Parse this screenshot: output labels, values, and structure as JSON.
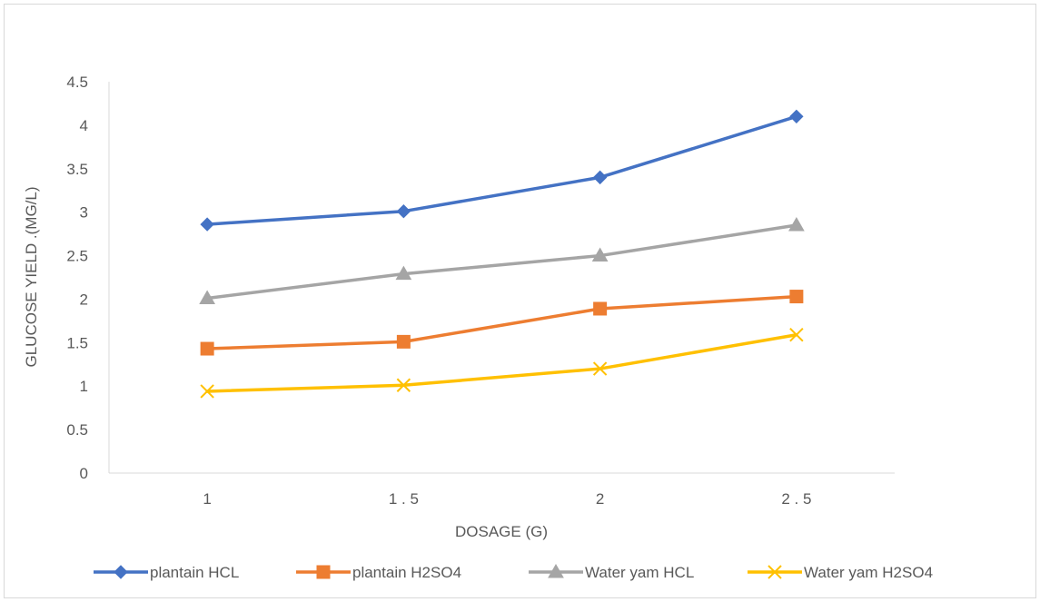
{
  "chart_data": {
    "type": "line",
    "title": "",
    "xlabel": "DOSAGE (G)",
    "ylabel": "GLUCOSE YIELD .(MG/L)",
    "categories": [
      "1",
      "1.5",
      "2",
      "2.5"
    ],
    "category_labels": [
      "1",
      "1 . 5",
      "2",
      "2 . 5"
    ],
    "ylim": [
      0,
      4.5
    ],
    "yticks": [
      "0",
      "0.5",
      "1",
      "1.5",
      "2",
      "2.5",
      "3",
      "3.5",
      "4",
      "4.5"
    ],
    "grid": false,
    "legend": "bottom",
    "series": [
      {
        "name": "plantain HCL",
        "values": [
          2.86,
          3.01,
          3.4,
          4.1
        ],
        "color": "#4472C4",
        "marker": "diamond"
      },
      {
        "name": "plantain H2SO4",
        "values": [
          1.43,
          1.51,
          1.89,
          2.03
        ],
        "color": "#ED7D31",
        "marker": "square"
      },
      {
        "name": "Water yam HCL",
        "values": [
          2.01,
          2.29,
          2.5,
          2.85
        ],
        "color": "#A5A5A5",
        "marker": "triangle"
      },
      {
        "name": "Water yam H2SO4",
        "values": [
          0.94,
          1.01,
          1.2,
          1.59
        ],
        "color": "#FFC000",
        "marker": "x"
      }
    ]
  }
}
